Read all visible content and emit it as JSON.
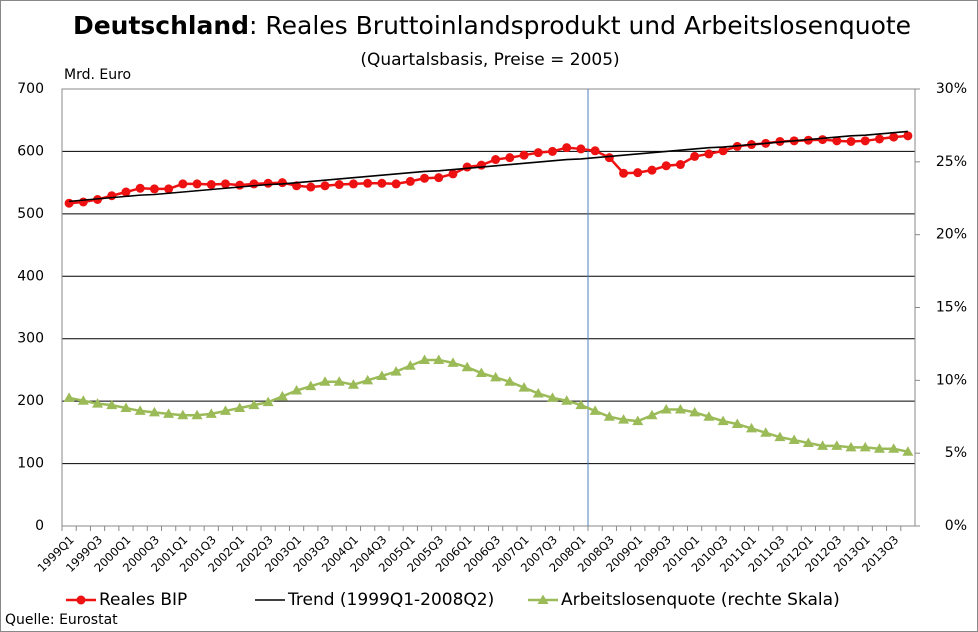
{
  "chart_data": {
    "type": "line",
    "title_bold": "Deutschland",
    "title": ": Reales Bruttoinlandsprodukt und Arbeitslosenquote",
    "subtitle": "(Quartalsbasis, Preise = 2005)",
    "y_label": "Mrd. Euro",
    "source": "Quelle: Eurostat",
    "categories": [
      "1999Q1",
      null,
      "1999Q3",
      null,
      "2000Q1",
      null,
      "2000Q3",
      null,
      "2001Q1",
      null,
      "2001Q3",
      null,
      "2002Q1",
      null,
      "2002Q3",
      null,
      "2003Q1",
      null,
      "2003Q3",
      null,
      "2004Q1",
      null,
      "2004Q3",
      null,
      "2005Q1",
      null,
      "2005Q3",
      null,
      "2006Q1",
      null,
      "2006Q3",
      null,
      "2007Q1",
      null,
      "2007Q3",
      null,
      "2008Q1",
      null,
      "2008Q3",
      null,
      "2009Q1",
      null,
      "2009Q3",
      null,
      "2010Q1",
      null,
      "2010Q3",
      null,
      "2011Q1",
      null,
      "2011Q3",
      null,
      "2012Q1",
      null,
      "2012Q3",
      null,
      "2013Q1",
      null,
      "2013Q3",
      null
    ],
    "series": [
      {
        "name": "Reales BIP",
        "color": "#ee1111",
        "marker": "circle",
        "values": [
          517,
          519,
          523,
          529,
          535,
          541,
          540,
          540,
          548,
          548,
          547,
          548,
          546,
          548,
          549,
          550,
          545,
          543,
          545,
          547,
          548,
          549,
          549,
          548,
          552,
          557,
          558,
          564,
          575,
          578,
          587,
          590,
          594,
          598,
          600,
          606,
          604,
          601,
          590,
          565,
          566,
          570,
          577,
          579,
          592,
          596,
          601,
          608,
          611,
          613,
          616,
          617,
          618,
          619,
          617,
          616,
          617,
          620,
          623,
          625
        ]
      },
      {
        "name": "Trend (1999Q1-2008Q2)",
        "color": "#000000",
        "marker": "none",
        "values": [
          520,
          522,
          524,
          526,
          528,
          530,
          531,
          533,
          535,
          537,
          539,
          541,
          543,
          545,
          547,
          548,
          550,
          552,
          554,
          556,
          558,
          560,
          562,
          564,
          566,
          568,
          569,
          571,
          573,
          575,
          577,
          579,
          581,
          583,
          585,
          587,
          588,
          590,
          592,
          594,
          596,
          598,
          600,
          602,
          604,
          606,
          607,
          609,
          611,
          613,
          615,
          617,
          619,
          621,
          623,
          625,
          626,
          628,
          630,
          632
        ]
      },
      {
        "name": "Arbeitslosenquote (rechte Skala)",
        "color": "#9bbb59",
        "marker": "triangle",
        "axis": "y2",
        "values": [
          8.8,
          8.6,
          8.4,
          8.3,
          8.1,
          7.9,
          7.8,
          7.7,
          7.6,
          7.6,
          7.7,
          7.9,
          8.1,
          8.3,
          8.5,
          8.9,
          9.3,
          9.6,
          9.9,
          9.9,
          9.7,
          10.0,
          10.3,
          10.6,
          11.0,
          11.4,
          11.4,
          11.2,
          10.9,
          10.5,
          10.2,
          9.9,
          9.5,
          9.1,
          8.8,
          8.6,
          8.3,
          7.9,
          7.5,
          7.3,
          7.2,
          7.6,
          8.0,
          8.0,
          7.8,
          7.5,
          7.2,
          7.0,
          6.7,
          6.4,
          6.1,
          5.9,
          5.7,
          5.5,
          5.5,
          5.4,
          5.4,
          5.3,
          5.3,
          5.1
        ]
      }
    ],
    "ylim": [
      0,
      700
    ],
    "yticks": [
      0,
      100,
      200,
      300,
      400,
      500,
      600,
      700
    ],
    "y2lim": [
      0,
      30
    ],
    "y2ticks": [
      {
        "value": 0,
        "label": "0%"
      },
      {
        "value": 5,
        "label": "5%"
      },
      {
        "value": 10,
        "label": "10%"
      },
      {
        "value": 15,
        "label": "15%"
      },
      {
        "value": 20,
        "label": "20%"
      },
      {
        "value": 25,
        "label": "25%"
      },
      {
        "value": 30,
        "label": "30%"
      }
    ],
    "grid": true,
    "legend": "bottom"
  }
}
